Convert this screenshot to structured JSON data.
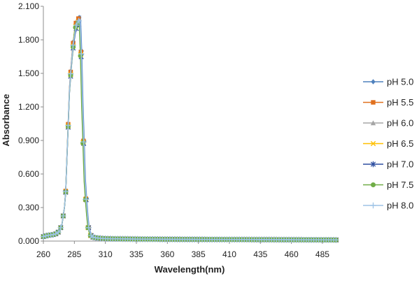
{
  "chart_data": {
    "type": "line",
    "title": "",
    "xlabel": "Wavelength(nm)",
    "ylabel": "Absorbance",
    "xlim": [
      260,
      498
    ],
    "ylim": [
      0,
      2.1
    ],
    "x_ticks": [
      "260",
      "285",
      "310",
      "335",
      "360",
      "385",
      "410",
      "435",
      "460",
      "485"
    ],
    "y_ticks": [
      "0.000",
      "0.300",
      "0.600",
      "0.900",
      "1.200",
      "1.500",
      "1.800",
      "2.100"
    ],
    "grid": false,
    "legend_position": "right",
    "peak_points": [
      {
        "x": 260,
        "y": 0.04
      },
      {
        "x": 263,
        "y": 0.05
      },
      {
        "x": 266,
        "y": 0.055
      },
      {
        "x": 269,
        "y": 0.06
      },
      {
        "x": 271,
        "y": 0.07
      },
      {
        "x": 273,
        "y": 0.09
      },
      {
        "x": 275,
        "y": 0.15
      },
      {
        "x": 277,
        "y": 0.3
      },
      {
        "x": 278,
        "y": 0.45
      },
      {
        "x": 279,
        "y": 0.76
      },
      {
        "x": 280,
        "y": 1.05
      },
      {
        "x": 281,
        "y": 1.36
      },
      {
        "x": 282,
        "y": 1.52
      },
      {
        "x": 283,
        "y": 1.66
      },
      {
        "x": 284,
        "y": 1.78
      },
      {
        "x": 285,
        "y": 1.9
      },
      {
        "x": 286,
        "y": 1.96
      },
      {
        "x": 287,
        "y": 1.985
      },
      {
        "x": 288,
        "y": 2.0
      },
      {
        "x": 289,
        "y": 2.01
      },
      {
        "x": 290,
        "y": 1.7
      },
      {
        "x": 291,
        "y": 1.24
      },
      {
        "x": 292,
        "y": 0.9
      },
      {
        "x": 293,
        "y": 0.55
      },
      {
        "x": 294,
        "y": 0.38
      },
      {
        "x": 295,
        "y": 0.23
      },
      {
        "x": 296,
        "y": 0.12
      },
      {
        "x": 297,
        "y": 0.08
      },
      {
        "x": 298,
        "y": 0.05
      },
      {
        "x": 300,
        "y": 0.035
      },
      {
        "x": 303,
        "y": 0.028
      },
      {
        "x": 306,
        "y": 0.025
      },
      {
        "x": 310,
        "y": 0.022
      },
      {
        "x": 320,
        "y": 0.02
      },
      {
        "x": 335,
        "y": 0.018
      },
      {
        "x": 360,
        "y": 0.016
      },
      {
        "x": 385,
        "y": 0.015
      },
      {
        "x": 410,
        "y": 0.014
      },
      {
        "x": 435,
        "y": 0.013
      },
      {
        "x": 460,
        "y": 0.012
      },
      {
        "x": 485,
        "y": 0.011
      },
      {
        "x": 497,
        "y": 0.01
      }
    ],
    "series": [
      {
        "name": "pH 5.0",
        "color": "#4f81bd",
        "marker": "diamond",
        "scale": 1.0,
        "shift": 0.9
      },
      {
        "name": "pH 5.5",
        "color": "#e0701e",
        "marker": "square",
        "scale": 0.995,
        "shift": 0.3
      },
      {
        "name": "pH 6.0",
        "color": "#a5a5a5",
        "marker": "triangle",
        "scale": 0.985,
        "shift": 0.1
      },
      {
        "name": "pH 6.5",
        "color": "#ffc000",
        "marker": "x",
        "scale": 0.98,
        "shift": 0.0
      },
      {
        "name": "pH 7.0",
        "color": "#2e4fa0",
        "marker": "star",
        "scale": 0.97,
        "shift": 0.5
      },
      {
        "name": "pH 7.5",
        "color": "#70ad47",
        "marker": "circle",
        "scale": 0.975,
        "shift": -0.1
      },
      {
        "name": "pH 8.0",
        "color": "#9dc3e6",
        "marker": "plus",
        "scale": 0.985,
        "shift": 0.6
      }
    ]
  }
}
